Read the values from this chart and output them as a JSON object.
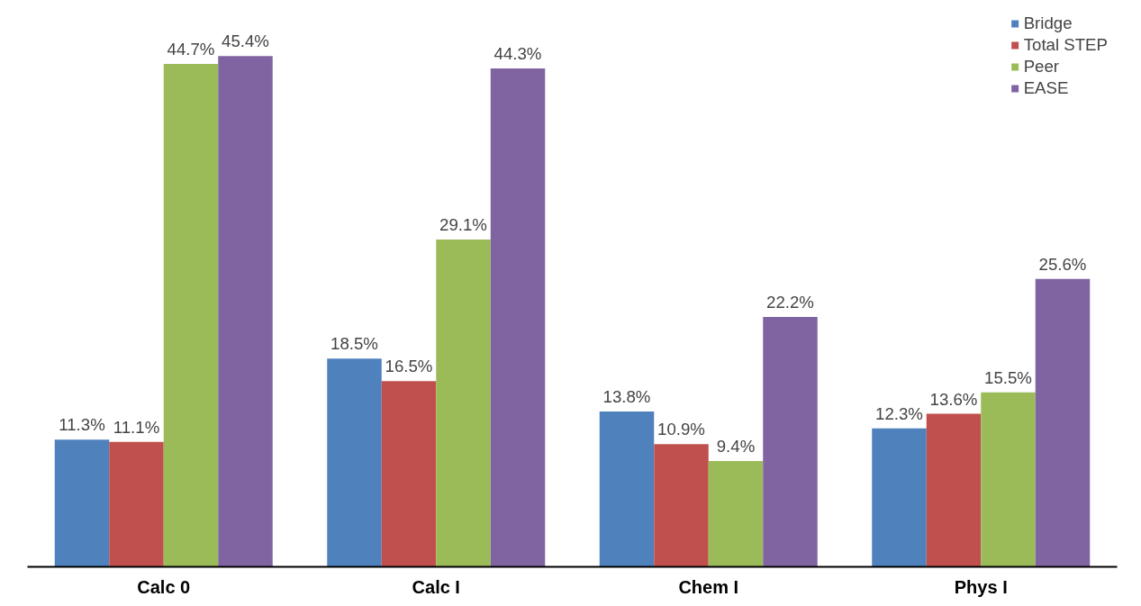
{
  "chart_data": {
    "type": "bar",
    "categories": [
      "Calc 0",
      "Calc I",
      "Chem I",
      "Phys I"
    ],
    "series": [
      {
        "name": "Bridge",
        "color": "#4f81bd",
        "values": [
          11.3,
          18.5,
          13.8,
          12.3
        ],
        "value_labels": [
          "11.3%",
          "18.5%",
          "13.8%",
          "12.3%"
        ]
      },
      {
        "name": "Total STEP",
        "color": "#c0504d",
        "values": [
          11.1,
          16.5,
          10.9,
          13.6
        ],
        "value_labels": [
          "11.1%",
          "16.5%",
          "10.9%",
          "13.6%"
        ]
      },
      {
        "name": "Peer",
        "color": "#9bbb59",
        "values": [
          44.7,
          29.1,
          9.4,
          15.5
        ],
        "value_labels": [
          "44.7%",
          "29.1%",
          "9.4%",
          "15.5%"
        ]
      },
      {
        "name": "EASE",
        "color": "#8064a2",
        "values": [
          45.4,
          44.3,
          22.2,
          25.6
        ],
        "value_labels": [
          "45.4%",
          "44.3%",
          "22.2%",
          "25.6%"
        ]
      }
    ],
    "legend": "top right",
    "grid": false,
    "tick_labels": "x"
  }
}
